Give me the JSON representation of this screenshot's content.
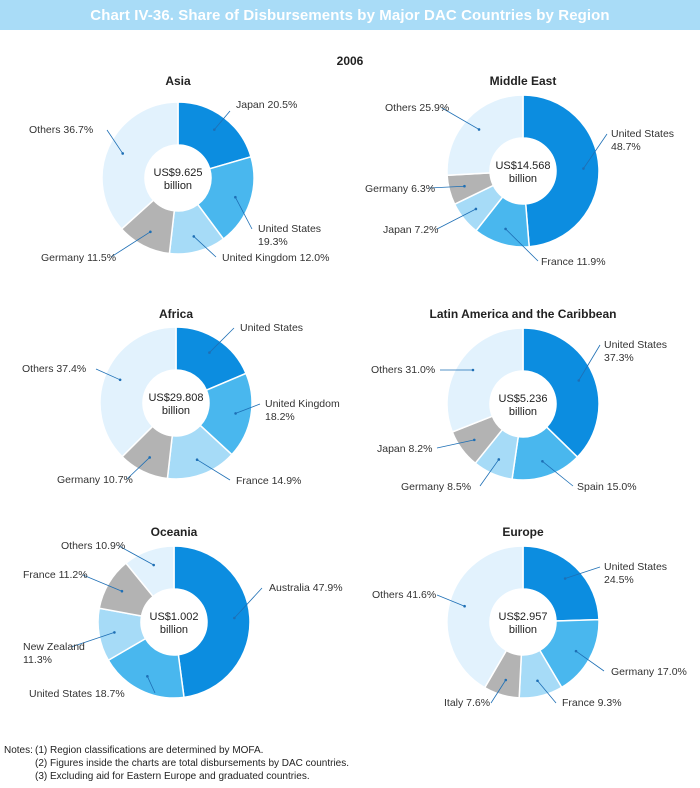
{
  "header": {
    "title": "Chart IV-36. Share of Disbursements by Major DAC Countries by Region"
  },
  "year_label": "2006",
  "colors": {
    "banner": "#a9dcf7",
    "dark_blue": "#0c8de0",
    "mid_blue": "#49b7ee",
    "light_blue": "#a6dbf7",
    "pale_blue": "#e2f2fd",
    "gray": "#b3b3b3",
    "leader": "#1e6fb5"
  },
  "chart_data": [
    {
      "type": "pie",
      "donut": true,
      "title": "Asia",
      "center_lines": [
        "US$9.625",
        "billion"
      ],
      "slices": [
        {
          "label": "Japan 20.5%",
          "name": "Japan",
          "value": 20.5,
          "color": "#0c8de0"
        },
        {
          "label": "United States\n19.3%",
          "name": "United States",
          "value": 19.3,
          "color": "#49b7ee"
        },
        {
          "label": "United Kingdom 12.0%",
          "name": "United Kingdom",
          "value": 12.0,
          "color": "#a6dbf7"
        },
        {
          "label": "Germany 11.5%",
          "name": "Germany",
          "value": 11.5,
          "color": "#b3b3b3"
        },
        {
          "label": "Others 36.7%",
          "name": "Others",
          "value": 36.7,
          "color": "#e2f2fd"
        }
      ]
    },
    {
      "type": "pie",
      "donut": true,
      "title": "Middle East",
      "center_lines": [
        "US$14.568",
        "billion"
      ],
      "slices": [
        {
          "label": "United States\n48.7%",
          "name": "United States",
          "value": 48.7,
          "color": "#0c8de0"
        },
        {
          "label": "France 11.9%",
          "name": "France",
          "value": 11.9,
          "color": "#49b7ee"
        },
        {
          "label": "Japan 7.2%",
          "name": "Japan",
          "value": 7.2,
          "color": "#a6dbf7"
        },
        {
          "label": "Germany 6.3%",
          "name": "Germany",
          "value": 6.3,
          "color": "#b3b3b3"
        },
        {
          "label": "Others 25.9%",
          "name": "Others",
          "value": 25.9,
          "color": "#e2f2fd"
        }
      ]
    },
    {
      "type": "pie",
      "donut": true,
      "title": "Africa",
      "center_lines": [
        "US$29.808",
        "billion"
      ],
      "slices": [
        {
          "label": "United States",
          "name": "United States",
          "value": 18.6,
          "color": "#0c8de0"
        },
        {
          "label": "United Kingdom\n18.2%",
          "name": "United Kingdom",
          "value": 18.2,
          "color": "#49b7ee"
        },
        {
          "label": "France 14.9%",
          "name": "France",
          "value": 14.9,
          "color": "#a6dbf7"
        },
        {
          "label": "Germany 10.7%",
          "name": "Germany",
          "value": 10.7,
          "color": "#b3b3b3"
        },
        {
          "label": "Others 37.4%",
          "name": "Others",
          "value": 37.4,
          "color": "#e2f2fd"
        }
      ]
    },
    {
      "type": "pie",
      "donut": true,
      "title": "Latin America and the Caribbean",
      "center_lines": [
        "US$5.236",
        "billion"
      ],
      "slices": [
        {
          "label": "United States\n37.3%",
          "name": "United States",
          "value": 37.3,
          "color": "#0c8de0"
        },
        {
          "label": "Spain 15.0%",
          "name": "Spain",
          "value": 15.0,
          "color": "#49b7ee"
        },
        {
          "label": "Germany 8.5%",
          "name": "Germany",
          "value": 8.5,
          "color": "#a6dbf7"
        },
        {
          "label": "Japan 8.2%",
          "name": "Japan",
          "value": 8.2,
          "color": "#b3b3b3"
        },
        {
          "label": "Others 31.0%",
          "name": "Others",
          "value": 31.0,
          "color": "#e2f2fd"
        }
      ]
    },
    {
      "type": "pie",
      "donut": true,
      "title": "Oceania",
      "center_lines": [
        "US$1.002",
        "billion"
      ],
      "slices": [
        {
          "label": "Australia 47.9%",
          "name": "Australia",
          "value": 47.9,
          "color": "#0c8de0"
        },
        {
          "label": "United States 18.7%",
          "name": "United States",
          "value": 18.7,
          "color": "#49b7ee"
        },
        {
          "label": "New Zealand\n11.3%",
          "name": "New Zealand",
          "value": 11.3,
          "color": "#a6dbf7"
        },
        {
          "label": "France 11.2%",
          "name": "France",
          "value": 11.2,
          "color": "#b3b3b3"
        },
        {
          "label": "Others 10.9%",
          "name": "Others",
          "value": 10.9,
          "color": "#e2f2fd"
        }
      ]
    },
    {
      "type": "pie",
      "donut": true,
      "title": "Europe",
      "center_lines": [
        "US$2.957",
        "billion"
      ],
      "slices": [
        {
          "label": "United States\n24.5%",
          "name": "United States",
          "value": 24.5,
          "color": "#0c8de0"
        },
        {
          "label": "Germany 17.0%",
          "name": "Germany",
          "value": 17.0,
          "color": "#49b7ee"
        },
        {
          "label": "France 9.3%",
          "name": "France",
          "value": 9.3,
          "color": "#a6dbf7"
        },
        {
          "label": "Italy 7.6%",
          "name": "Italy",
          "value": 7.6,
          "color": "#b3b3b3"
        },
        {
          "label": "Others 41.6%",
          "name": "Others",
          "value": 41.6,
          "color": "#e2f2fd"
        }
      ]
    }
  ],
  "notes": {
    "label": "Notes:",
    "items": [
      "(1) Region classifications are determined by MOFA.",
      "(2) Figures inside the charts are total disbursements by DAC countries.",
      "(3) Excluding aid for Eastern Europe and graduated countries."
    ]
  }
}
